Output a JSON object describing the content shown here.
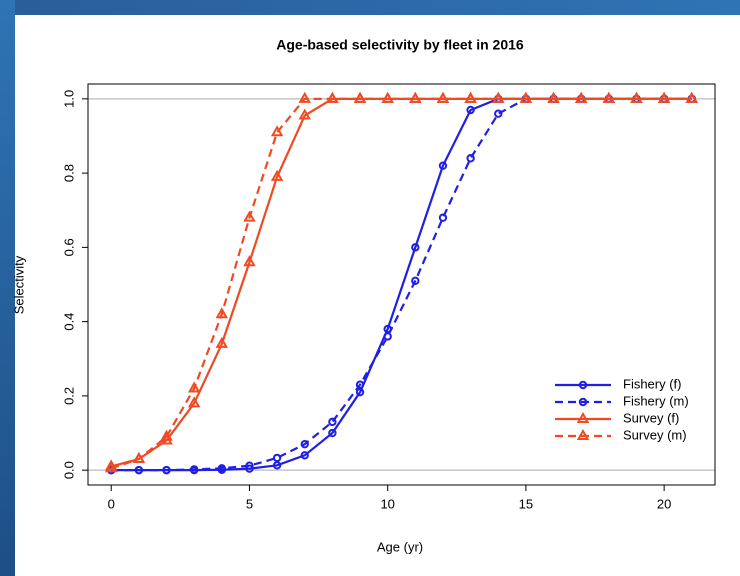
{
  "chart_data": {
    "type": "line",
    "title": "Age-based selectivity by fleet in 2016",
    "x_label": "Age (yr)",
    "y_label": "Selectivity",
    "x": [
      0,
      1,
      2,
      3,
      4,
      5,
      6,
      7,
      8,
      9,
      10,
      11,
      12,
      13,
      14,
      15,
      16,
      17,
      18,
      19,
      20,
      21
    ],
    "series": [
      {
        "name": "Fishery (f)",
        "color": "#1f1fe6",
        "dash": false,
        "marker": "circle",
        "values": [
          0,
          0,
          0,
          0,
          0.001,
          0.004,
          0.013,
          0.04,
          0.1,
          0.21,
          0.38,
          0.6,
          0.82,
          0.97,
          1,
          1,
          1,
          1,
          1,
          1,
          1,
          1
        ]
      },
      {
        "name": "Fishery (m)",
        "color": "#1f1fe6",
        "dash": true,
        "marker": "circle",
        "values": [
          0,
          0,
          0,
          0.002,
          0.005,
          0.012,
          0.033,
          0.07,
          0.13,
          0.23,
          0.36,
          0.51,
          0.68,
          0.84,
          0.96,
          1,
          1,
          1,
          1,
          1,
          1,
          1
        ]
      },
      {
        "name": "Survey (f)",
        "color": "#f04a23",
        "dash": false,
        "marker": "triangle",
        "values": [
          0.01,
          0.03,
          0.08,
          0.18,
          0.34,
          0.56,
          0.79,
          0.955,
          1,
          1,
          1,
          1,
          1,
          1,
          1,
          1,
          1,
          1,
          1,
          1,
          1,
          1
        ]
      },
      {
        "name": "Survey (m)",
        "color": "#f04a23",
        "dash": true,
        "marker": "triangle",
        "values": [
          0.005,
          0.03,
          0.09,
          0.22,
          0.42,
          0.68,
          0.91,
          1,
          1,
          1,
          1,
          1,
          1,
          1,
          1,
          1,
          1,
          1,
          1,
          1,
          1,
          1
        ]
      }
    ],
    "xlim": [
      -0.84,
      21.84
    ],
    "ylim": [
      -0.04,
      1.04
    ],
    "xticks": [
      0,
      5,
      10,
      15,
      20
    ],
    "yticks": [
      {
        "value": 0,
        "label": "0.0"
      },
      {
        "value": 0.2,
        "label": "0.2"
      },
      {
        "value": 0.4,
        "label": "0.4"
      },
      {
        "value": 0.6,
        "label": "0.6"
      },
      {
        "value": 0.8,
        "label": "0.8"
      },
      {
        "value": 1,
        "label": "1.0"
      }
    ],
    "legend": "bottom-right"
  }
}
